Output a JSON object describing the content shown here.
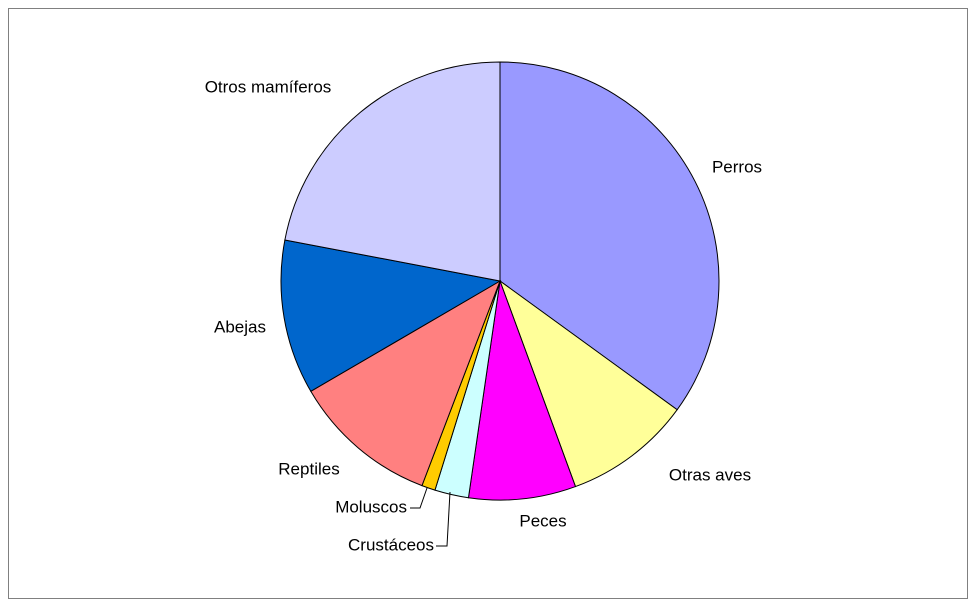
{
  "chart_data": {
    "type": "pie",
    "categories": [
      "Perros",
      "Otras aves",
      "Peces",
      "Crustáceos",
      "Moluscos",
      "Reptiles",
      "Abejas",
      "Otros mamíferos"
    ],
    "values": [
      35,
      9.4,
      7.9,
      2.5,
      1,
      10.8,
      11.4,
      22
    ],
    "colors": [
      "#9999ff",
      "#ffff99",
      "#ff00ff",
      "#ccffff",
      "#ffcc00",
      "#ff8080",
      "#0066cc",
      "#ccccff"
    ]
  }
}
